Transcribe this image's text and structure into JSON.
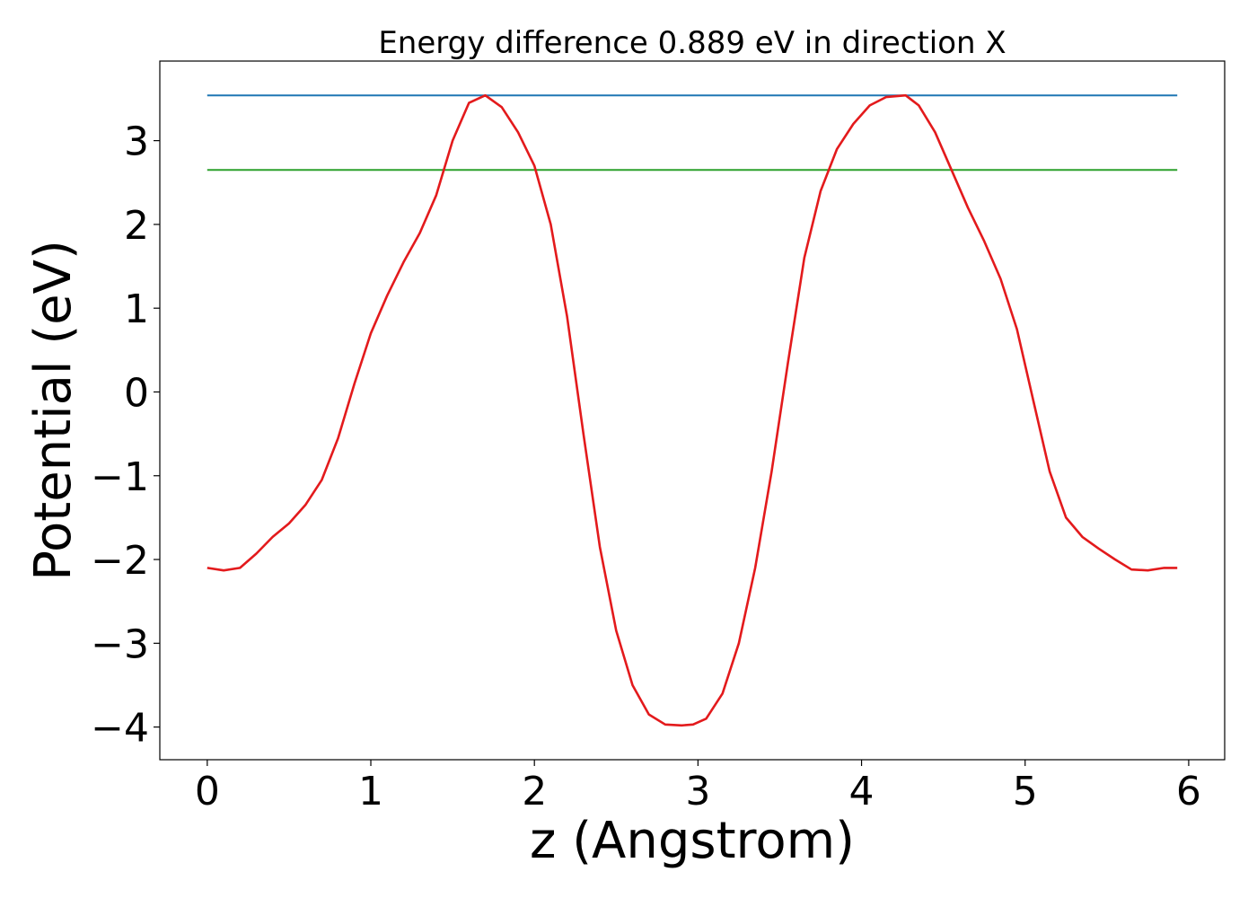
{
  "chart_data": {
    "type": "line",
    "title": "Energy difference 0.889 eV in direction X",
    "xlabel": "z (Angstrom)",
    "ylabel": "Potential (eV)",
    "xlim": [
      -0.29,
      6.22
    ],
    "ylim": [
      -4.39,
      3.95
    ],
    "xticks": [
      0,
      1,
      2,
      3,
      4,
      5,
      6
    ],
    "yticks": [
      -4,
      -3,
      -2,
      -1,
      0,
      1,
      2,
      3
    ],
    "xtick_labels": [
      "0",
      "1",
      "2",
      "3",
      "4",
      "5",
      "6"
    ],
    "ytick_labels": [
      "−4",
      "−3",
      "−2",
      "−1",
      "0",
      "1",
      "2",
      "3"
    ],
    "grid": false,
    "legend": "none",
    "series": [
      {
        "color": "#1f77b4",
        "x": [
          0,
          5.93
        ],
        "y": [
          3.54,
          3.54
        ]
      },
      {
        "color": "#2ca02c",
        "x": [
          0,
          5.93
        ],
        "y": [
          2.65,
          2.65
        ]
      },
      {
        "color": "#e31a1c",
        "x": [
          0.0,
          0.1,
          0.2,
          0.3,
          0.4,
          0.5,
          0.6,
          0.7,
          0.8,
          0.9,
          1.0,
          1.1,
          1.2,
          1.3,
          1.4,
          1.5,
          1.6,
          1.7,
          1.8,
          1.9,
          2.0,
          2.1,
          2.2,
          2.3,
          2.4,
          2.5,
          2.6,
          2.7,
          2.8,
          2.9,
          2.97,
          3.05,
          3.15,
          3.25,
          3.35,
          3.45,
          3.55,
          3.65,
          3.75,
          3.85,
          3.95,
          4.05,
          4.15,
          4.27,
          4.35,
          4.45,
          4.55,
          4.65,
          4.75,
          4.85,
          4.95,
          5.05,
          5.15,
          5.25,
          5.35,
          5.45,
          5.55,
          5.65,
          5.75,
          5.85,
          5.93
        ],
        "y": [
          -2.1,
          -2.13,
          -2.1,
          -1.93,
          -1.73,
          -1.57,
          -1.35,
          -1.05,
          -0.55,
          0.1,
          0.7,
          1.15,
          1.55,
          1.9,
          2.35,
          3.0,
          3.45,
          3.54,
          3.4,
          3.1,
          2.7,
          2.0,
          0.9,
          -0.5,
          -1.85,
          -2.85,
          -3.5,
          -3.85,
          -3.97,
          -3.98,
          -3.97,
          -3.9,
          -3.6,
          -3.0,
          -2.1,
          -0.95,
          0.35,
          1.6,
          2.4,
          2.9,
          3.2,
          3.42,
          3.52,
          3.54,
          3.42,
          3.1,
          2.65,
          2.2,
          1.8,
          1.35,
          0.75,
          -0.1,
          -0.95,
          -1.5,
          -1.73,
          -1.87,
          -2.0,
          -2.12,
          -2.13,
          -2.1,
          -2.1
        ]
      }
    ]
  }
}
